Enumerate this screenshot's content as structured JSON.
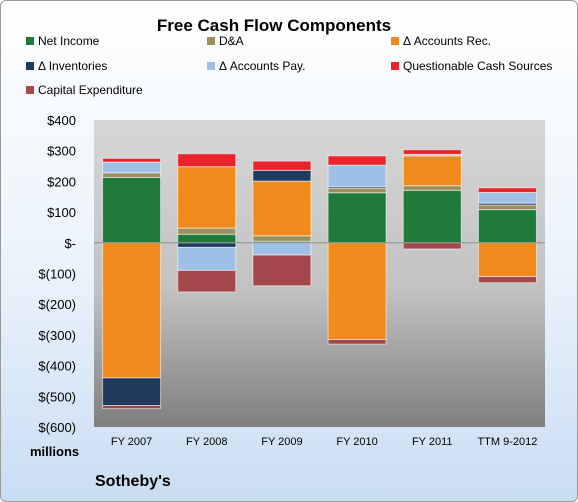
{
  "chart_data": {
    "type": "bar",
    "stacked": true,
    "title": "Free Cash Flow Components",
    "categories": [
      "FY 2007",
      "FY 2008",
      "FY 2009",
      "FY 2010",
      "FY 2011",
      "TTM 9-2012"
    ],
    "series": [
      {
        "name": "Net Income",
        "color": "#1f7a3c",
        "values": [
          213,
          28,
          5,
          163,
          171,
          108
        ]
      },
      {
        "name": "D&A",
        "color": "#9c8f5e",
        "values": [
          15,
          20,
          18,
          15,
          15,
          15
        ]
      },
      {
        "name": "Δ Accounts Rec.",
        "color": "#f08a1c",
        "values": [
          -440,
          200,
          178,
          -315,
          97,
          -110
        ]
      },
      {
        "name": "Δ Inventories",
        "color": "#1f3b5e",
        "values": [
          -90,
          -15,
          35,
          5,
          0,
          6
        ]
      },
      {
        "name": "Δ Accounts Pay.",
        "color": "#9fc0e6",
        "values": [
          35,
          -75,
          -40,
          70,
          5,
          35
        ]
      },
      {
        "name": "Questionable Cash Sources",
        "color": "#e8242a",
        "values": [
          12,
          42,
          30,
          30,
          15,
          15
        ]
      },
      {
        "name": "Capital Expenditure",
        "color": "#a4474a",
        "values": [
          -10,
          -70,
          -100,
          -15,
          -20,
          -20
        ]
      }
    ],
    "ylim": [
      -600,
      400
    ],
    "yticks": [
      400,
      300,
      200,
      100,
      0,
      -100,
      -200,
      -300,
      -400,
      -500,
      -600
    ],
    "ytick_labels": [
      "$400",
      "$300",
      "$200",
      "$100",
      "$-",
      "$(100)",
      "$(200)",
      "$(300)",
      "$(400)",
      "$(500)",
      "$(600)"
    ],
    "ylabel": "millions",
    "legend_position": "top",
    "grid": false
  },
  "brand": "Sotheby's"
}
